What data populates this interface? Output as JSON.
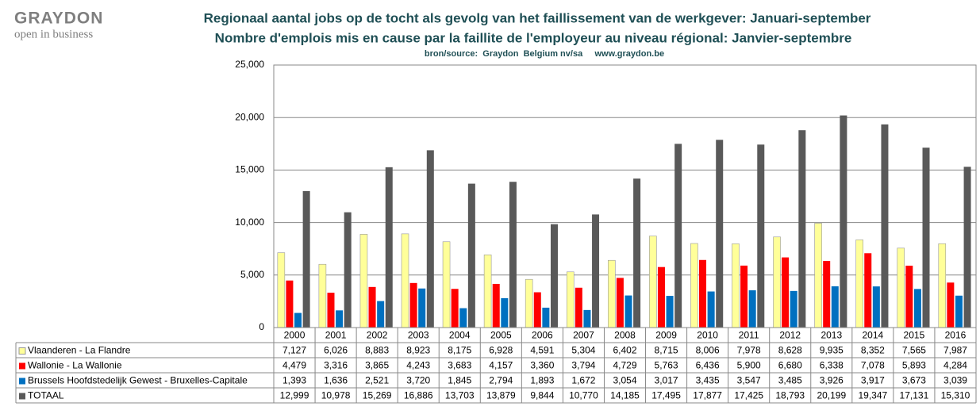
{
  "logo": {
    "name": "GRAYDON",
    "tagline": "open in business"
  },
  "chart_data": {
    "type": "bar",
    "title": "Regionaal aantal jobs op de tocht als gevolg van het faillissement van de werkgever: Januari-september",
    "subtitle": "Nombre d'emplois mis en cause  par la faillite de l'employeur au niveau régional: Janvier-septembre",
    "source": "bron/source:  Graydon  Belgium nv/sa     www.graydon.be",
    "categories": [
      "2000",
      "2001",
      "2002",
      "2003",
      "2004",
      "2005",
      "2006",
      "2007",
      "2008",
      "2009",
      "2010",
      "2011",
      "2012",
      "2013",
      "2014",
      "2015",
      "2016"
    ],
    "series": [
      {
        "name": "Vlaanderen - La Flandre",
        "color": "#ffff99",
        "values": [
          7127,
          6026,
          8883,
          8923,
          8175,
          6928,
          4591,
          5304,
          6402,
          8715,
          8006,
          7978,
          8628,
          9935,
          8352,
          7565,
          7987
        ],
        "value_labels": [
          "7,127",
          "6,026",
          "8,883",
          "8,923",
          "8,175",
          "6,928",
          "4,591",
          "5,304",
          "6,402",
          "8,715",
          "8,006",
          "7,978",
          "8,628",
          "9,935",
          "8,352",
          "7,565",
          "7,987"
        ]
      },
      {
        "name": "Wallonie - La Wallonie",
        "color": "#ff0000",
        "values": [
          4479,
          3316,
          3865,
          4243,
          3683,
          4157,
          3360,
          3794,
          4729,
          5763,
          6436,
          5900,
          6680,
          6338,
          7078,
          5893,
          4284
        ],
        "value_labels": [
          "4,479",
          "3,316",
          "3,865",
          "4,243",
          "3,683",
          "4,157",
          "3,360",
          "3,794",
          "4,729",
          "5,763",
          "6,436",
          "5,900",
          "6,680",
          "6,338",
          "7,078",
          "5,893",
          "4,284"
        ]
      },
      {
        "name": "Brussels Hoofdstedelijk Gewest - Bruxelles-Capitale",
        "color": "#0070c0",
        "values": [
          1393,
          1636,
          2521,
          3720,
          1845,
          2794,
          1893,
          1672,
          3054,
          3017,
          3435,
          3547,
          3485,
          3926,
          3917,
          3673,
          3039
        ],
        "value_labels": [
          "1,393",
          "1,636",
          "2,521",
          "3,720",
          "1,845",
          "2,794",
          "1,893",
          "1,672",
          "3,054",
          "3,017",
          "3,435",
          "3,547",
          "3,485",
          "3,926",
          "3,917",
          "3,673",
          "3,039"
        ]
      },
      {
        "name": "TOTAAL",
        "color": "#595959",
        "values": [
          12999,
          10978,
          15269,
          16886,
          13703,
          13879,
          9844,
          10770,
          14185,
          17495,
          17877,
          17425,
          18793,
          20199,
          19347,
          17131,
          15310
        ],
        "value_labels": [
          "12,999",
          "10,978",
          "15,269",
          "16,886",
          "13,703",
          "13,879",
          "9,844",
          "10,770",
          "14,185",
          "17,495",
          "17,877",
          "17,425",
          "18,793",
          "20,199",
          "19,347",
          "17,131",
          "15,310"
        ]
      }
    ],
    "ylim": [
      0,
      25000
    ],
    "yticks": [
      0,
      {
        "value": 5000,
        "label": "5,000"
      },
      {
        "value": 10000,
        "label": "10,000"
      },
      {
        "value": 15000,
        "label": "15,000"
      },
      {
        "value": 20000,
        "label": "20,000"
      },
      {
        "value": 25000,
        "label": "25,000"
      }
    ],
    "grid": true
  }
}
